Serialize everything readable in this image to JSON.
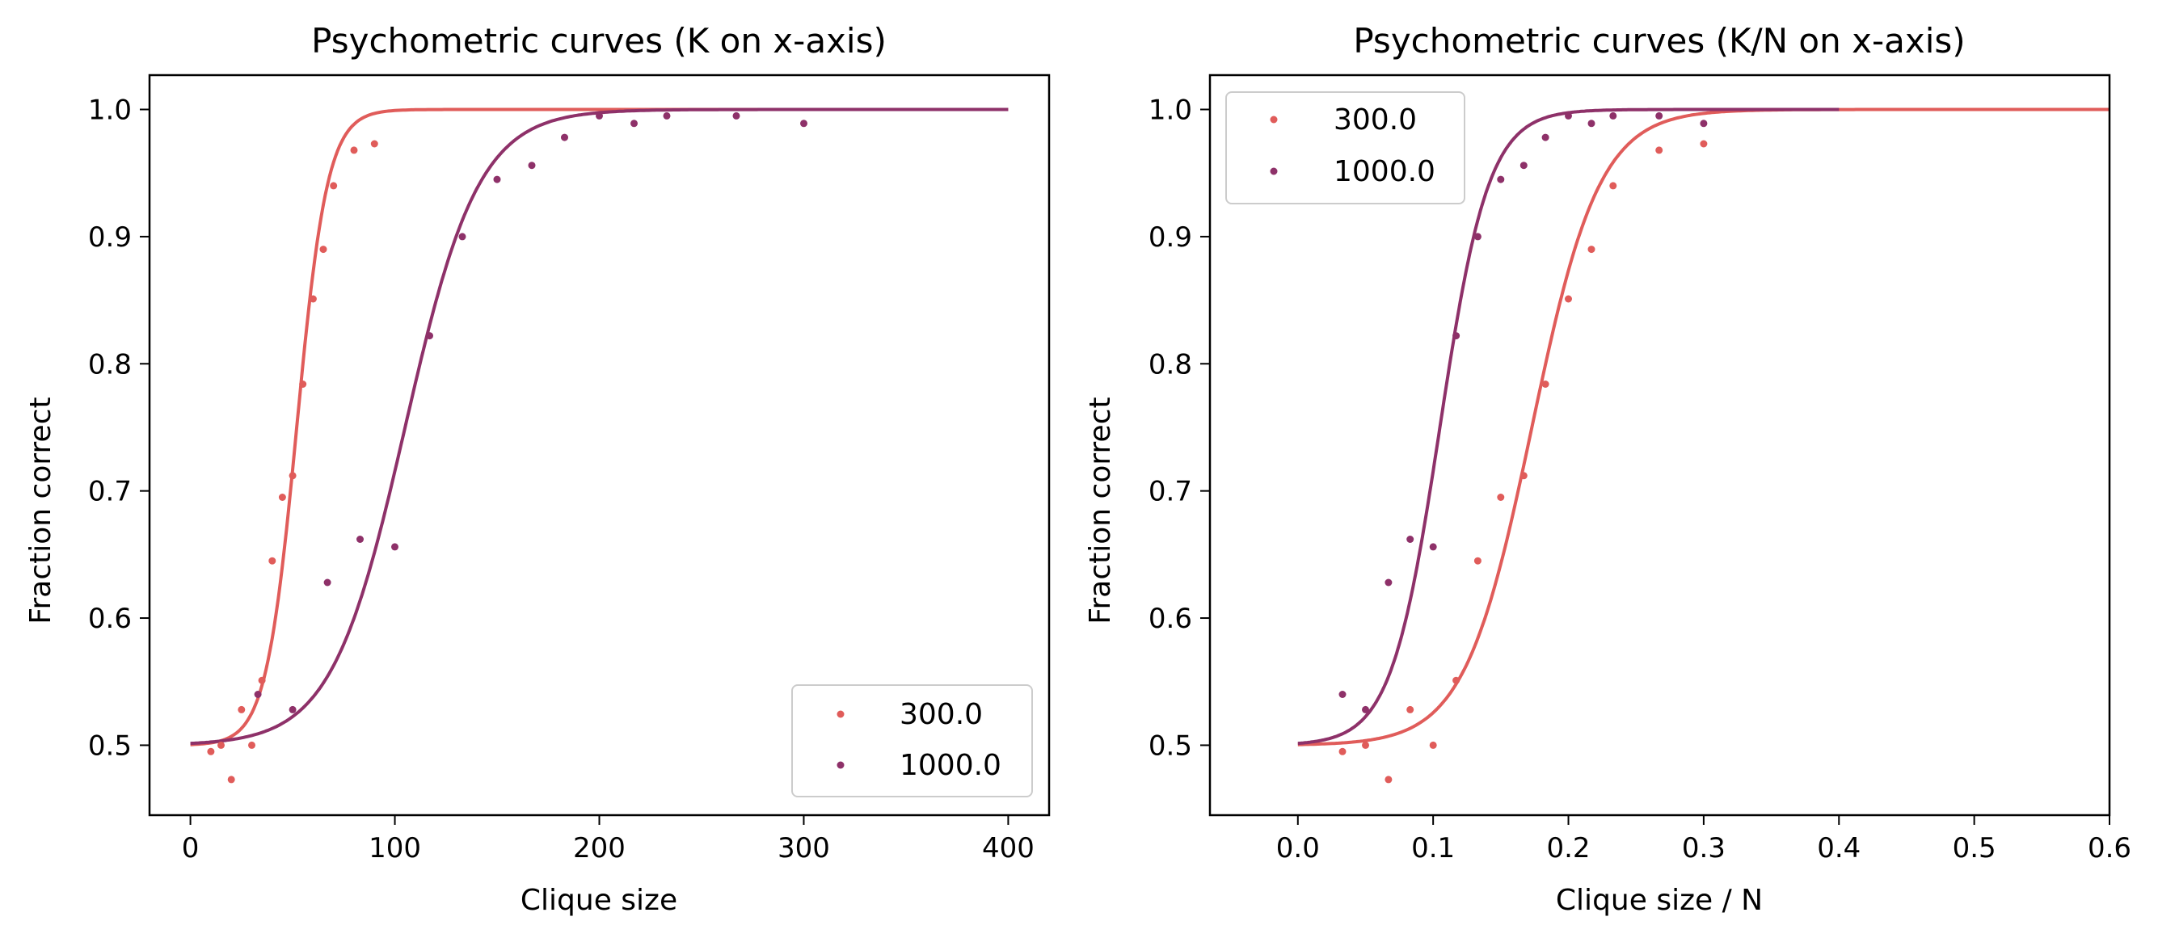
{
  "chart_data": [
    {
      "type": "scatter",
      "title": "Psychometric curves (K on x-axis)",
      "xlabel": "Clique size",
      "ylabel": "Fraction correct",
      "xlim": [
        -20,
        420
      ],
      "ylim": [
        0.445,
        1.027
      ],
      "xticks": [
        0,
        100,
        200,
        300,
        400
      ],
      "xtick_labels": [
        "0",
        "100",
        "200",
        "300",
        "400"
      ],
      "yticks": [
        0.5,
        0.6,
        0.7,
        0.8,
        0.9,
        1.0
      ],
      "ytick_labels": [
        "0.5",
        "0.6",
        "0.7",
        "0.8",
        "0.9",
        "1.0"
      ],
      "grid": false,
      "legend_position": "bottom-right",
      "series": [
        {
          "name": "300.0",
          "color": "#e05c5a",
          "points": [
            [
              10,
              0.495
            ],
            [
              15,
              0.5
            ],
            [
              20,
              0.473
            ],
            [
              25,
              0.528
            ],
            [
              30,
              0.5
            ],
            [
              35,
              0.551
            ],
            [
              40,
              0.645
            ],
            [
              45,
              0.695
            ],
            [
              50,
              0.712
            ],
            [
              55,
              0.784
            ],
            [
              60,
              0.851
            ],
            [
              65,
              0.89
            ],
            [
              70,
              0.94
            ],
            [
              80,
              0.968
            ],
            [
              90,
              0.973
            ]
          ],
          "fit_curve": {
            "model": "logistic 0.5 + 0.5/(1+exp(-(x-x0)/s))",
            "x0": 52,
            "s": 7.5,
            "x_range": [
              0,
              400
            ]
          }
        },
        {
          "name": "1000.0",
          "color": "#8e3169",
          "points": [
            [
              33,
              0.54
            ],
            [
              50,
              0.528
            ],
            [
              67,
              0.628
            ],
            [
              83,
              0.662
            ],
            [
              100,
              0.656
            ],
            [
              117,
              0.822
            ],
            [
              133,
              0.9
            ],
            [
              150,
              0.945
            ],
            [
              167,
              0.956
            ],
            [
              183,
              0.978
            ],
            [
              200,
              0.995
            ],
            [
              217,
              0.989
            ],
            [
              233,
              0.995
            ],
            [
              267,
              0.995
            ],
            [
              300,
              0.989
            ]
          ],
          "fit_curve": {
            "model": "logistic 0.5 + 0.5/(1+exp(-(x-x0)/s))",
            "x0": 105,
            "s": 18,
            "x_range": [
              0,
              400
            ]
          }
        }
      ]
    },
    {
      "type": "scatter",
      "title": "Psychometric curves (K/N on x-axis)",
      "xlabel": "Clique size / N",
      "ylabel": "Fraction correct",
      "xlim": [
        -0.065,
        0.6
      ],
      "ylim": [
        0.445,
        1.027
      ],
      "xticks": [
        0.0,
        0.1,
        0.2,
        0.3,
        0.4,
        0.5,
        0.6
      ],
      "xtick_labels": [
        "0.0",
        "0.1",
        "0.2",
        "0.3",
        "0.4",
        "0.5",
        "0.6"
      ],
      "yticks": [
        0.5,
        0.6,
        0.7,
        0.8,
        0.9,
        1.0
      ],
      "ytick_labels": [
        "0.5",
        "0.6",
        "0.7",
        "0.8",
        "0.9",
        "1.0"
      ],
      "grid": false,
      "legend_position": "top-left",
      "series": [
        {
          "name": "300.0",
          "color": "#e05c5a",
          "points": [
            [
              0.033,
              0.495
            ],
            [
              0.05,
              0.5
            ],
            [
              0.067,
              0.473
            ],
            [
              0.083,
              0.528
            ],
            [
              0.1,
              0.5
            ],
            [
              0.117,
              0.551
            ],
            [
              0.133,
              0.645
            ],
            [
              0.15,
              0.695
            ],
            [
              0.167,
              0.712
            ],
            [
              0.183,
              0.784
            ],
            [
              0.2,
              0.851
            ],
            [
              0.217,
              0.89
            ],
            [
              0.233,
              0.94
            ],
            [
              0.267,
              0.968
            ],
            [
              0.3,
              0.973
            ]
          ],
          "fit_curve": {
            "model": "logistic 0.5 + 0.5/(1+exp(-(x-x0)/s))",
            "x0": 0.173,
            "s": 0.025,
            "x_range": [
              0,
              0.6
            ]
          }
        },
        {
          "name": "1000.0",
          "color": "#8e3169",
          "points": [
            [
              0.033,
              0.54
            ],
            [
              0.05,
              0.528
            ],
            [
              0.067,
              0.628
            ],
            [
              0.083,
              0.662
            ],
            [
              0.1,
              0.656
            ],
            [
              0.117,
              0.822
            ],
            [
              0.133,
              0.9
            ],
            [
              0.15,
              0.945
            ],
            [
              0.167,
              0.956
            ],
            [
              0.183,
              0.978
            ],
            [
              0.2,
              0.995
            ],
            [
              0.217,
              0.989
            ],
            [
              0.233,
              0.995
            ],
            [
              0.267,
              0.995
            ],
            [
              0.3,
              0.989
            ]
          ],
          "fit_curve": {
            "model": "logistic 0.5 + 0.5/(1+exp(-(x-x0)/s))",
            "x0": 0.105,
            "s": 0.018,
            "x_range": [
              0,
              0.4
            ]
          }
        }
      ]
    }
  ]
}
